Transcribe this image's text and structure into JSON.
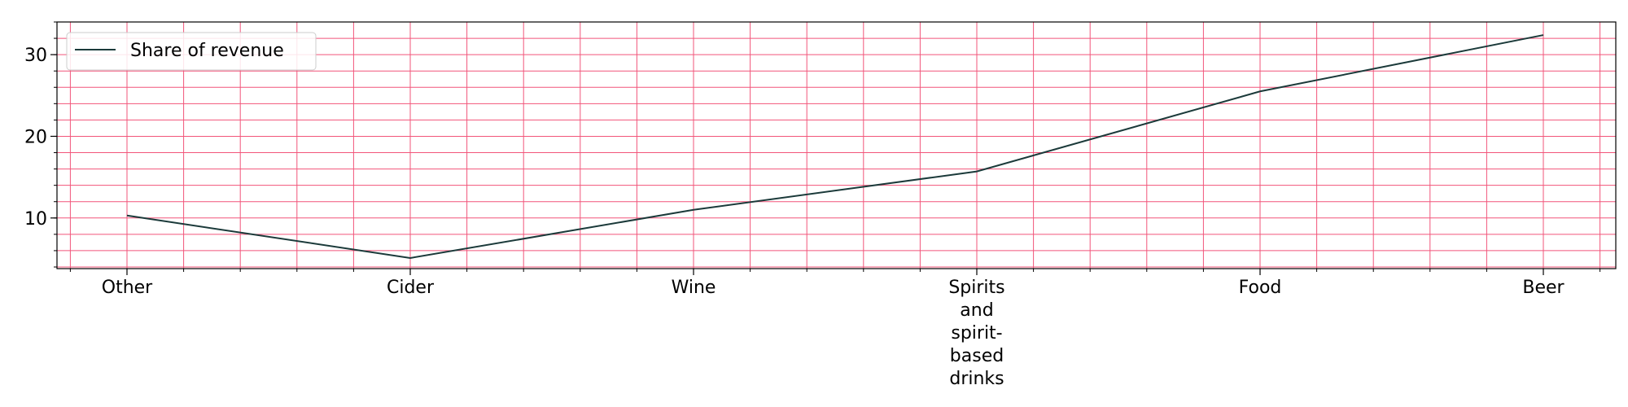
{
  "chart_data": {
    "type": "line",
    "title": "",
    "xlabel": "",
    "ylabel": "",
    "categories": [
      "Other",
      "Cider",
      "Wine",
      "Spirits and spirit-based drinks",
      "Food",
      "Beer"
    ],
    "category_label_lines": [
      [
        "Other"
      ],
      [
        "Cider"
      ],
      [
        "Wine"
      ],
      [
        "Spirits",
        "and",
        "spirit-",
        "based",
        "drinks"
      ],
      [
        "Food"
      ],
      [
        "Beer"
      ]
    ],
    "series": [
      {
        "name": "Share of revenue",
        "values": [
          10.3,
          5.1,
          11.0,
          15.7,
          25.5,
          32.4
        ],
        "color": "#1b3a3a"
      }
    ],
    "ylim": [
      3.8,
      34.0
    ],
    "yticks": [
      10,
      20,
      30
    ],
    "yminor_step": 2,
    "xminor_per_category": 5,
    "grid": true,
    "grid_color": "#f2557a",
    "legend": {
      "position": "top-left",
      "label": "Share of revenue"
    }
  }
}
